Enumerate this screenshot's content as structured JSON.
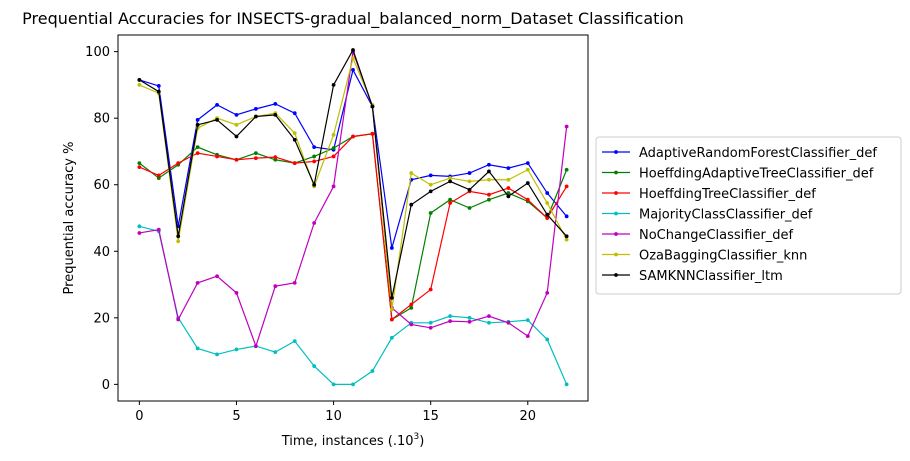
{
  "chart_data": {
    "type": "line",
    "title": "Prequential Accuracies for INSECTS-gradual_balanced_norm_Dataset Classification",
    "xlabel": "Time, instances (.10",
    "xlabel_sup": "3",
    "xlabel_close": ")",
    "ylabel": "Prequential accuracy %",
    "xlim": [
      -1.1,
      23.1
    ],
    "ylim": [
      -5,
      105
    ],
    "xticks": [
      0,
      5,
      10,
      15,
      20
    ],
    "yticks": [
      0,
      20,
      40,
      60,
      80,
      100
    ],
    "legend_position": "center-right (outside plot)",
    "grid": false,
    "x": [
      0,
      1,
      2,
      3,
      4,
      5,
      6,
      7,
      8,
      9,
      10,
      11,
      12,
      13,
      14,
      15,
      16,
      17,
      18,
      19,
      20,
      21,
      22
    ],
    "series": [
      {
        "name": "AdaptiveRandomForestClassifier_def",
        "color": "#0000ff",
        "values": [
          91.5,
          89.7,
          47.5,
          79.5,
          84,
          81,
          82.8,
          84.3,
          81.5,
          71.3,
          70.5,
          94.5,
          83.5,
          41,
          61.5,
          62.8,
          62.5,
          63.5,
          66,
          65,
          66.5,
          57.5,
          50.5
        ]
      },
      {
        "name": "HoeffdingAdaptiveTreeClassifier_def",
        "color": "#008000",
        "values": [
          66.5,
          62,
          66,
          71.3,
          69,
          67.5,
          69.5,
          67.5,
          66.5,
          68.5,
          71,
          74.5,
          75.3,
          19.5,
          23,
          51.5,
          55.5,
          53,
          55.5,
          57.5,
          55,
          50,
          64.5
        ]
      },
      {
        "name": "HoeffdingTreeClassifier_def",
        "color": "#ff0000",
        "values": [
          65.3,
          62.8,
          66.5,
          69.5,
          68.5,
          67.5,
          68,
          68.3,
          66.5,
          67,
          68.5,
          74.5,
          75.3,
          19.5,
          24,
          28.5,
          54.5,
          58,
          57,
          59,
          55.5,
          50,
          59.5
        ]
      },
      {
        "name": "MajorityClassClassifier_def",
        "color": "#00bfbf",
        "values": [
          47.5,
          46,
          20,
          10.8,
          9,
          10.5,
          11.5,
          9.7,
          13,
          5.5,
          0,
          0,
          4,
          14,
          18.5,
          18.5,
          20.5,
          20,
          18.5,
          18.8,
          19.3,
          13.5,
          0
        ]
      },
      {
        "name": "NoChangeClassifier_def",
        "color": "#bf00bf",
        "values": [
          45.5,
          46.5,
          19.5,
          30.5,
          32.5,
          27.5,
          11.5,
          29.5,
          30.5,
          48.5,
          59.5,
          100,
          83.5,
          23,
          18,
          17,
          19,
          18.8,
          20.5,
          18.5,
          14.5,
          27.5,
          77.5
        ]
      },
      {
        "name": "OzaBaggingClassifier_knn",
        "color": "#bfbf00",
        "values": [
          90,
          87.5,
          43,
          77,
          80,
          78,
          80.5,
          81.5,
          75.5,
          59.5,
          75,
          98,
          84,
          22.5,
          63.5,
          60,
          62,
          61,
          61.5,
          61.5,
          64.5,
          54.5,
          43.5
        ]
      },
      {
        "name": "SAMKNNClassifier_ltm",
        "color": "#000000",
        "values": [
          91.5,
          88,
          44.5,
          78,
          79.5,
          74.5,
          80.5,
          81,
          73.5,
          60,
          90,
          100.5,
          83.5,
          26,
          54,
          58,
          61,
          58.5,
          64,
          56.5,
          60.5,
          51,
          44.5
        ]
      }
    ]
  }
}
